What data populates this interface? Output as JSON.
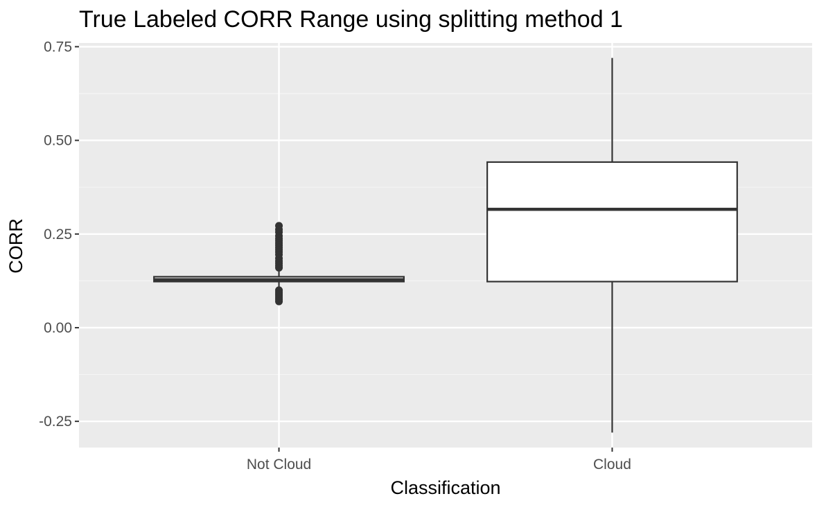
{
  "colors": {
    "panel_background": "#EBEBEB",
    "grid_major": "#FFFFFF",
    "grid_minor": "#F5F5F5",
    "box_fill": "#FFFFFF",
    "box_line": "#333333",
    "tick_text": "#4D4D4D",
    "title_text": "#000000"
  },
  "chart_data": {
    "type": "box",
    "title": "True Labeled CORR Range using splitting method 1",
    "xlabel": "Classification",
    "ylabel": "CORR",
    "ylim": [
      -0.32,
      0.76
    ],
    "yticks": [
      -0.25,
      0.0,
      0.25,
      0.5,
      0.75
    ],
    "ytick_labels": [
      "-0.25",
      "0.00",
      "0.25",
      "0.50",
      "0.75"
    ],
    "categories": [
      "Not Cloud",
      "Cloud"
    ],
    "grid": true,
    "legend": "none",
    "boxes": [
      {
        "category": "Not Cloud",
        "whisker_low": 0.105,
        "q1": 0.123,
        "median": 0.128,
        "q3": 0.136,
        "whisker_high": 0.15,
        "outliers": [
          0.272,
          0.262,
          0.255,
          0.245,
          0.238,
          0.232,
          0.226,
          0.22,
          0.214,
          0.208,
          0.202,
          0.195,
          0.185,
          0.178,
          0.172,
          0.166,
          0.16,
          0.1,
          0.095,
          0.09,
          0.085,
          0.08,
          0.075,
          0.07
        ]
      },
      {
        "category": "Cloud",
        "whisker_low": -0.28,
        "q1": 0.123,
        "median": 0.316,
        "q3": 0.442,
        "whisker_high": 0.72,
        "outliers": []
      }
    ]
  }
}
